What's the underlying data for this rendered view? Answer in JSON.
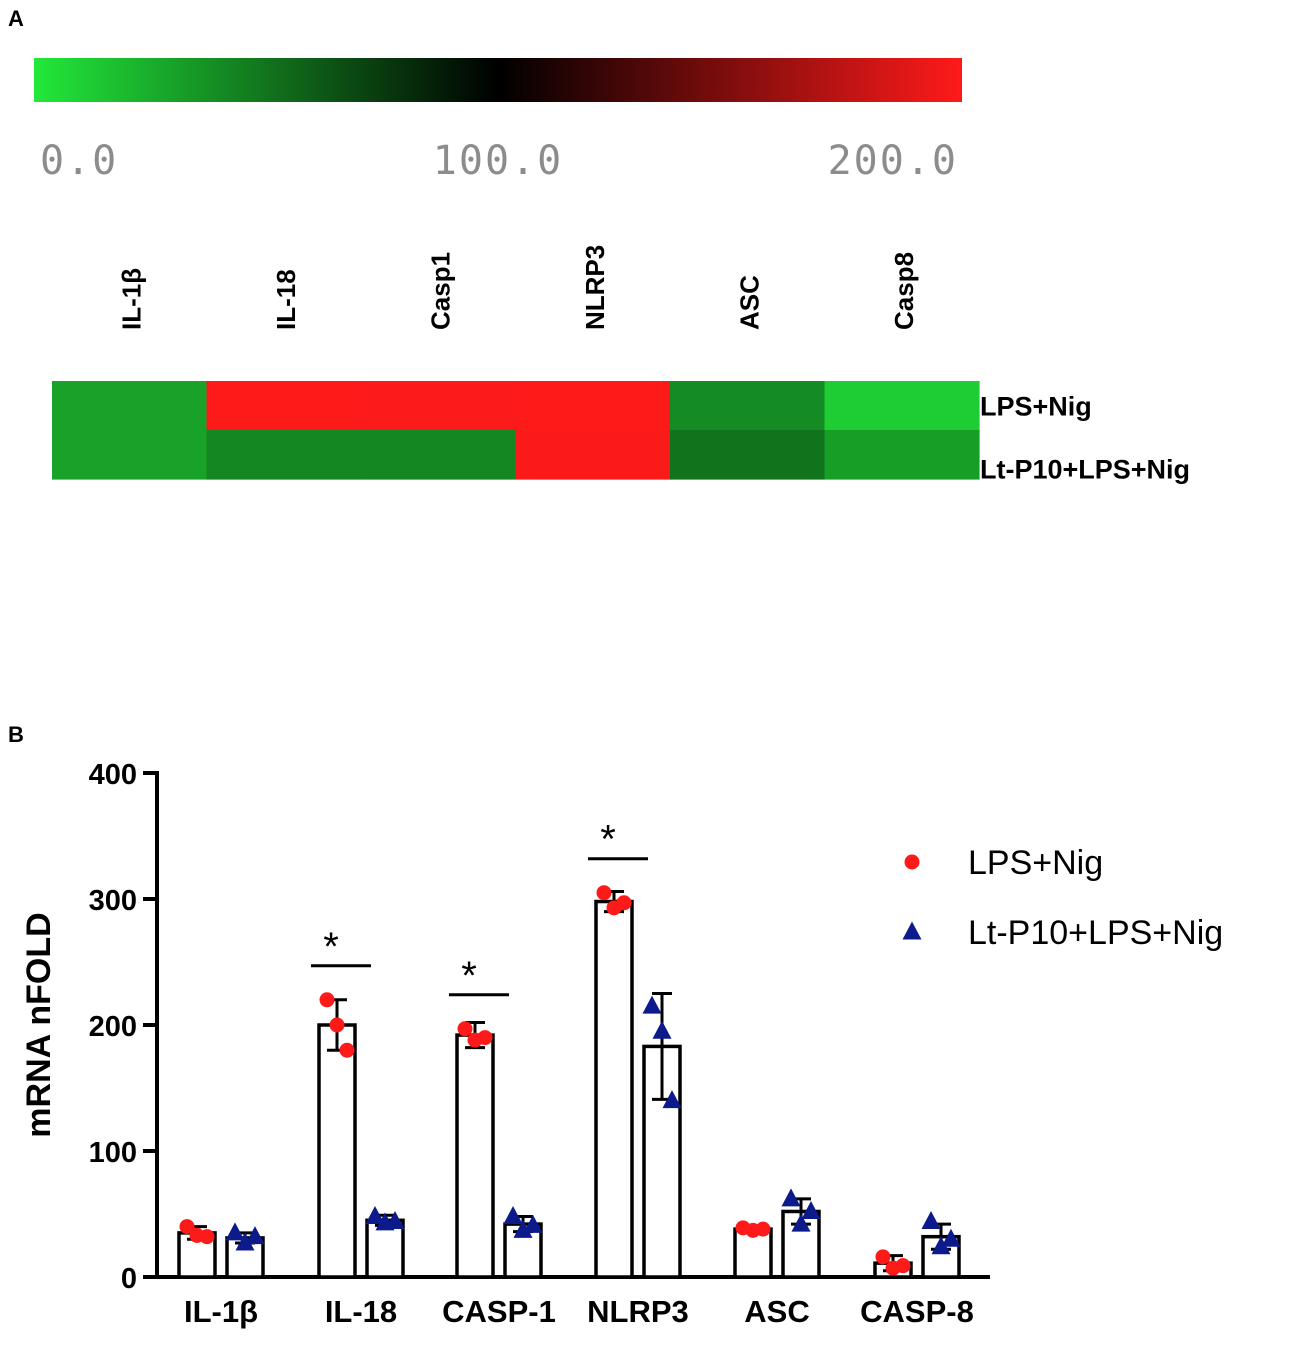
{
  "panel_a": {
    "label": "A",
    "scale": {
      "ticks": [
        "0.0",
        "100.0",
        "200.0"
      ],
      "min": 0,
      "mid": 100,
      "max": 200,
      "color_low": "#22e83a",
      "color_mid": "#000000",
      "color_high": "#ff1a1a"
    },
    "genes": [
      "IL-1β",
      "IL-18",
      "Casp1",
      "NLRP3",
      "ASC",
      "Casp8"
    ],
    "rows": [
      "LPS+Nig",
      "Lt-P10+LPS+Nig"
    ]
  },
  "panel_b": {
    "label": "B",
    "legend": [
      {
        "name": "LPS+Nig",
        "color": "#ff1a1a",
        "marker": "circle"
      },
      {
        "name": "Lt-P10+LPS+Nig",
        "color": "#0d1a8c",
        "marker": "triangle"
      }
    ]
  },
  "chart_data": [
    {
      "type": "heatmap",
      "x": [
        "IL-1β",
        "IL-18",
        "Casp1",
        "NLRP3",
        "ASC",
        "Casp8"
      ],
      "y": [
        "LPS+Nig",
        "Lt-P10+LPS+Nig"
      ],
      "values": [
        [
          30,
          205,
          195,
          295,
          40,
          12
        ],
        [
          30,
          42,
          42,
          185,
          50,
          32
        ]
      ],
      "colorbar": {
        "min": 0,
        "max": 200,
        "ticks": [
          "0.0",
          "100.0",
          "200.0"
        ]
      }
    },
    {
      "type": "bar",
      "categories": [
        "IL-1β",
        "IL-18",
        "CASP-1",
        "NLRP3",
        "ASC",
        "CASP-8"
      ],
      "ylabel": "mRNA nFOLD",
      "ylim": [
        0,
        400
      ],
      "yticks": [
        0,
        100,
        200,
        300,
        400
      ],
      "series": [
        {
          "name": "LPS+Nig",
          "values": [
            35,
            200,
            192,
            298,
            38,
            11
          ],
          "errors": [
            5,
            20,
            10,
            8,
            2,
            6
          ],
          "points": [
            [
              40,
              33,
              32
            ],
            [
              220,
              200,
              180
            ],
            [
              197,
              188,
              190
            ],
            [
              305,
              293,
              297
            ],
            [
              39,
              37,
              38
            ],
            [
              16,
              7,
              9
            ]
          ]
        },
        {
          "name": "Lt-P10+LPS+Nig",
          "values": [
            31,
            45,
            42,
            183,
            52,
            32
          ],
          "errors": [
            4,
            4,
            6,
            42,
            10,
            10
          ],
          "points": [
            [
              35,
              27,
              32
            ],
            [
              48,
              43,
              44
            ],
            [
              48,
              37,
              41
            ],
            [
              215,
              195,
              140
            ],
            [
              62,
              42,
              52
            ],
            [
              44,
              24,
              30
            ]
          ]
        }
      ],
      "significance": [
        {
          "category": "IL-18",
          "label": "*"
        },
        {
          "category": "CASP-1",
          "label": "*"
        },
        {
          "category": "NLRP3",
          "label": "*"
        }
      ]
    }
  ]
}
